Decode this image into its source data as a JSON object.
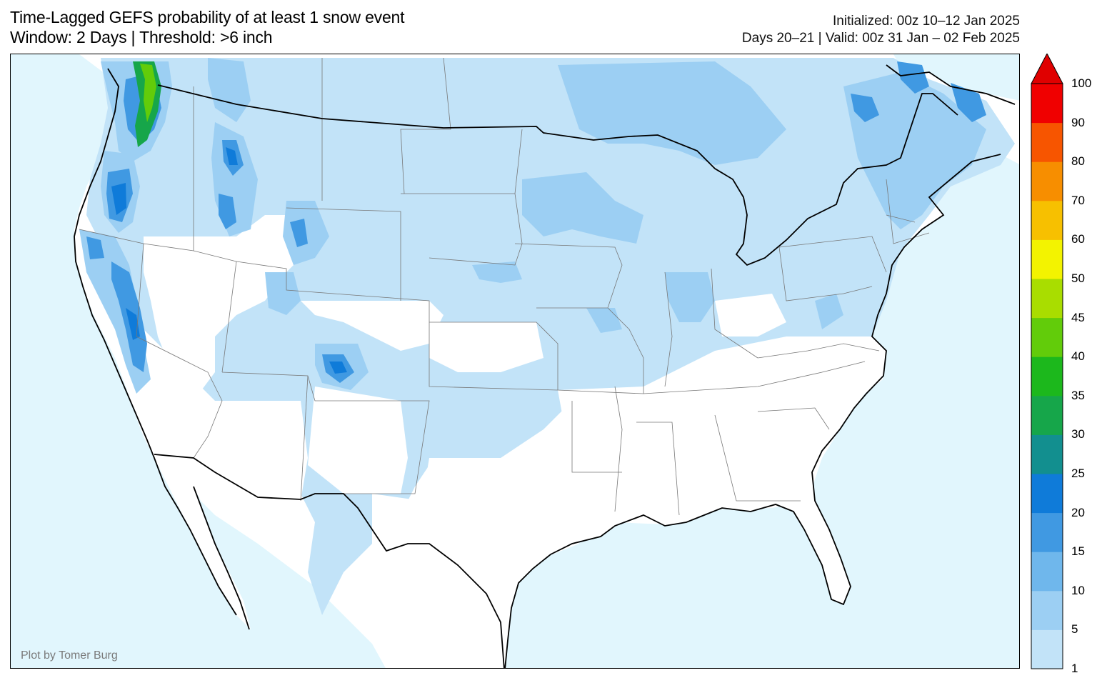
{
  "header": {
    "title_line1": "Time-Lagged GEFS probability of at least 1 snow event",
    "title_line2": "Window: 2 Days | Threshold: >6 inch",
    "init_text": "Initialized: 00z 10–12 Jan 2025",
    "valid_text": "Days 20–21 | Valid: 00z 31 Jan – 02 Feb 2025"
  },
  "credit": "Plot by Tomer Burg",
  "colorbar": {
    "levels": [
      "1",
      "5",
      "10",
      "15",
      "20",
      "25",
      "30",
      "35",
      "40",
      "45",
      "50",
      "60",
      "70",
      "80",
      "90",
      "100"
    ],
    "colors": [
      "#c2e3f8",
      "#9ccff3",
      "#6fb7ec",
      "#4099e2",
      "#0f7bd9",
      "#128f8f",
      "#16a64a",
      "#1cb81c",
      "#62cc0a",
      "#a9dd00",
      "#f3f300",
      "#f7c000",
      "#f78e00",
      "#f75500",
      "#f00000",
      "#e00000"
    ],
    "extend": "max"
  },
  "map": {
    "ocean_color": "#e1f6fd",
    "land_color": "#ffffff",
    "lake_color": "#e1f6fd",
    "border_color": "#000000",
    "state_line_color": "#777777"
  }
}
